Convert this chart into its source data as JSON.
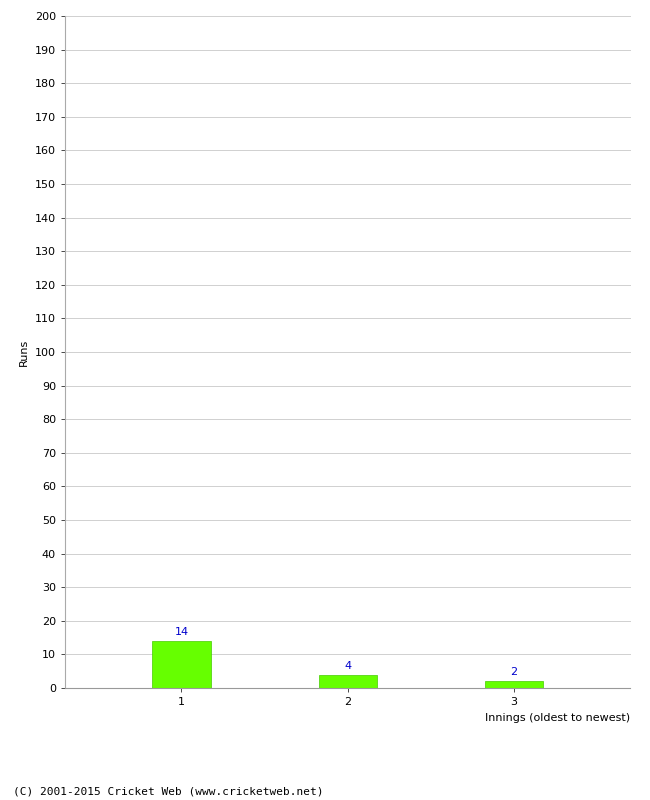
{
  "categories": [
    "1",
    "2",
    "3"
  ],
  "values": [
    14,
    4,
    2
  ],
  "bar_color": "#66ff00",
  "bar_edge_color": "#44cc00",
  "value_label_color": "#0000cc",
  "xlabel": "Innings (oldest to newest)",
  "ylabel": "Runs",
  "ylim": [
    0,
    200
  ],
  "yticks": [
    0,
    10,
    20,
    30,
    40,
    50,
    60,
    70,
    80,
    90,
    100,
    110,
    120,
    130,
    140,
    150,
    160,
    170,
    180,
    190,
    200
  ],
  "title": "",
  "footer": "(C) 2001-2015 Cricket Web (www.cricketweb.net)",
  "value_label_fontsize": 8,
  "axis_label_fontsize": 8,
  "tick_fontsize": 8,
  "footer_fontsize": 8,
  "background_color": "#ffffff",
  "grid_color": "#d0d0d0"
}
